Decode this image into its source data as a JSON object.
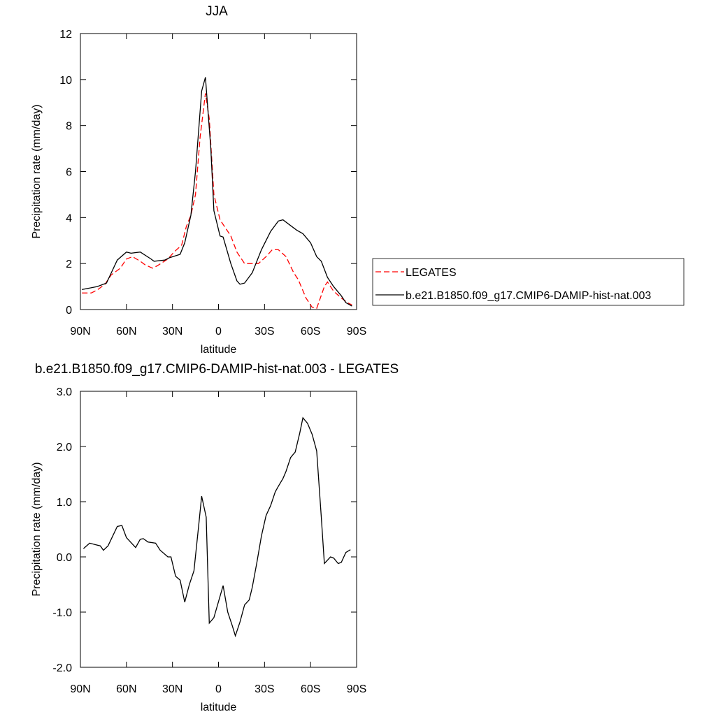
{
  "chart_data": [
    {
      "type": "line",
      "title": "JJA",
      "xlabel": "latitude",
      "ylabel": "Precipitation rate (mm/day)",
      "xlim": [
        90,
        -90
      ],
      "xticks": [
        {
          "value": 90,
          "label": "90N"
        },
        {
          "value": 60,
          "label": "60N"
        },
        {
          "value": 30,
          "label": "30N"
        },
        0,
        {
          "value": -30,
          "label": "30S"
        },
        {
          "value": -60,
          "label": "60S"
        },
        {
          "value": -90,
          "label": "90S"
        }
      ],
      "ylim": [
        0,
        12
      ],
      "yticks": [
        0,
        2,
        4,
        6,
        8,
        10,
        12
      ],
      "legend": "outside-right",
      "series": [
        {
          "name": "LEGATES",
          "color": "#ff0000",
          "dash": true,
          "x": [
            89,
            83,
            79,
            74,
            70,
            64,
            60,
            56,
            51,
            48,
            43,
            40,
            33,
            29,
            24,
            21,
            18,
            15,
            12,
            8.5,
            6,
            3,
            -1,
            -4,
            -8,
            -12,
            -17,
            -21,
            -26,
            -31,
            -35,
            -39,
            -44,
            -49,
            -52,
            -57,
            -61,
            -64,
            -69,
            -71,
            -75,
            -80,
            -84,
            -87
          ],
          "values": [
            0.72,
            0.72,
            0.85,
            1.1,
            1.5,
            1.8,
            2.2,
            2.3,
            2.1,
            1.95,
            1.8,
            1.9,
            2.2,
            2.5,
            2.8,
            3.6,
            4.1,
            5.0,
            7.5,
            9.4,
            8.3,
            5.0,
            3.9,
            3.6,
            3.2,
            2.5,
            2.0,
            2.0,
            2.0,
            2.3,
            2.6,
            2.6,
            2.3,
            1.6,
            1.3,
            0.5,
            0.1,
            0.05,
            1.0,
            1.2,
            0.8,
            0.5,
            0.3,
            0.2
          ]
        },
        {
          "name": "b.e21.B1850.f09_g17.CMIP6-DAMIP-hist-nat.003",
          "color": "#000000",
          "dash": false,
          "x": [
            89,
            79,
            73,
            66,
            60,
            57,
            51,
            44,
            42,
            35,
            32,
            25,
            22,
            18,
            15,
            11,
            8.5,
            5,
            3,
            -1,
            -3,
            -8,
            -12,
            -14,
            -17,
            -22,
            -28,
            -34,
            -39,
            -42,
            -46,
            -51,
            -55,
            -60,
            -64,
            -67,
            -71,
            -75,
            -80,
            -83,
            -87
          ],
          "values": [
            0.87,
            1.0,
            1.15,
            2.15,
            2.5,
            2.45,
            2.5,
            2.2,
            2.1,
            2.15,
            2.25,
            2.4,
            2.9,
            4.1,
            6.0,
            9.5,
            10.1,
            7.0,
            4.3,
            3.2,
            3.15,
            2.0,
            1.25,
            1.1,
            1.15,
            1.6,
            2.6,
            3.4,
            3.85,
            3.9,
            3.7,
            3.45,
            3.3,
            2.9,
            2.3,
            2.1,
            1.4,
            1.0,
            0.6,
            0.3,
            0.15
          ]
        }
      ]
    },
    {
      "type": "line",
      "title": "b.e21.B1850.f09_g17.CMIP6-DAMIP-hist-nat.003 - LEGATES",
      "xlabel": "latitude",
      "ylabel": "Precipitation rate (mm/day)",
      "xlim": [
        90,
        -90
      ],
      "xticks": [
        {
          "value": 90,
          "label": "90N"
        },
        {
          "value": 60,
          "label": "60N"
        },
        {
          "value": 30,
          "label": "30N"
        },
        0,
        {
          "value": -30,
          "label": "30S"
        },
        {
          "value": -60,
          "label": "60S"
        },
        {
          "value": -90,
          "label": "90S"
        }
      ],
      "ylim": [
        -2,
        3
      ],
      "yticks": [
        {
          "value": -2,
          "label": "-2.0"
        },
        {
          "value": -1,
          "label": "-1.0"
        },
        {
          "value": 0,
          "label": "0.0"
        },
        {
          "value": 1,
          "label": "1.0"
        },
        {
          "value": 2,
          "label": "2.0"
        },
        {
          "value": 3,
          "label": "3.0"
        }
      ],
      "series": [
        {
          "color": "#000000",
          "dash": false,
          "x": [
            88,
            84,
            80,
            77,
            75,
            72,
            66,
            63,
            60,
            54,
            51,
            49,
            46,
            41,
            38,
            33,
            31,
            28,
            25,
            22,
            19,
            16,
            13,
            11,
            8,
            6,
            3,
            -3,
            -6,
            -9,
            -11,
            -14,
            -17,
            -20,
            -22,
            -25,
            -28,
            -31,
            -34,
            -37,
            -39,
            -42,
            -44,
            -47,
            -50,
            -53,
            -55,
            -58,
            -61,
            -64,
            -67,
            -69,
            -73,
            -75,
            -78,
            -80,
            -83,
            -86
          ],
          "values": [
            0.15,
            0.25,
            0.22,
            0.2,
            0.12,
            0.2,
            0.55,
            0.57,
            0.35,
            0.17,
            0.32,
            0.33,
            0.27,
            0.25,
            0.12,
            0.0,
            0.0,
            -0.35,
            -0.42,
            -0.82,
            -0.5,
            -0.25,
            0.55,
            1.1,
            0.72,
            -1.2,
            -1.1,
            -0.52,
            -1.0,
            -1.25,
            -1.43,
            -1.18,
            -0.87,
            -0.78,
            -0.55,
            -0.1,
            0.38,
            0.75,
            0.93,
            1.18,
            1.28,
            1.42,
            1.55,
            1.8,
            1.9,
            2.25,
            2.52,
            2.42,
            2.22,
            1.92,
            0.72,
            -0.12,
            0.0,
            -0.02,
            -0.12,
            -0.1,
            0.08,
            0.13
          ]
        }
      ]
    }
  ]
}
